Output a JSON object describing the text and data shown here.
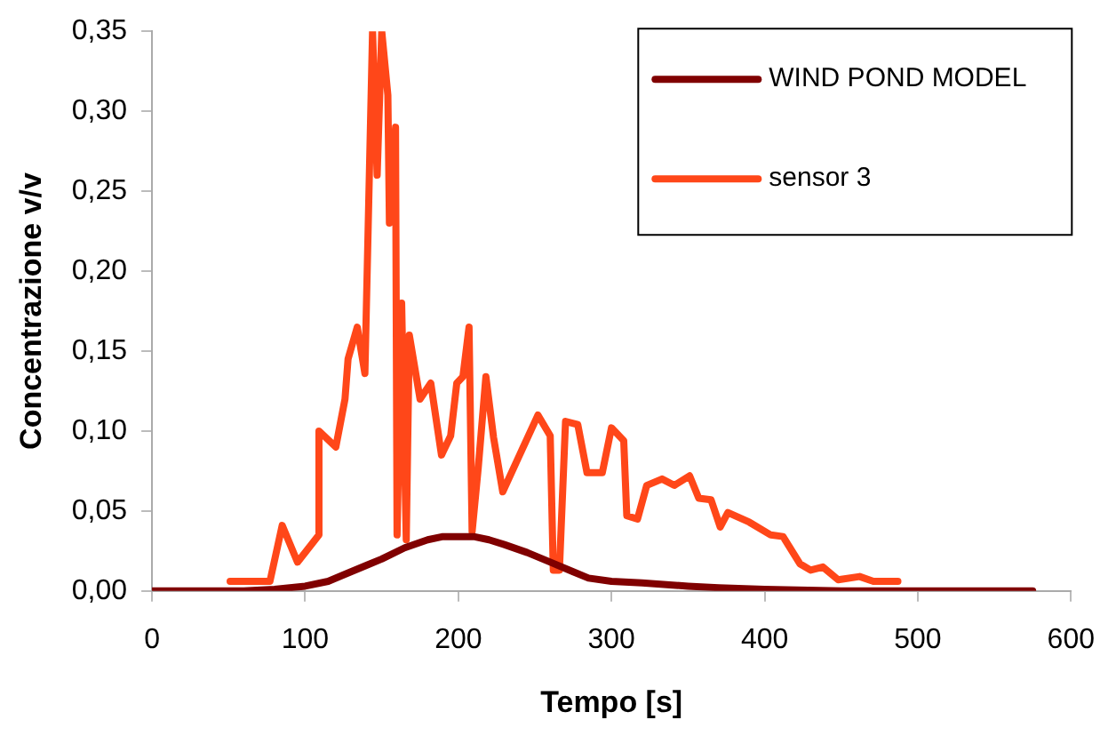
{
  "chart_data": {
    "type": "line",
    "xlabel": "Tempo [s]",
    "ylabel": "Concentrazione v/v",
    "xlim": [
      0,
      600
    ],
    "xticks": [
      0,
      100,
      200,
      300,
      400,
      500,
      600
    ],
    "ylim": [
      0,
      0.35
    ],
    "yticks": [
      {
        "value": 0,
        "label": "0,00"
      },
      {
        "value": 0.05,
        "label": "0,05"
      },
      {
        "value": 0.1,
        "label": "0,10"
      },
      {
        "value": 0.15,
        "label": "0,15"
      },
      {
        "value": 0.2,
        "label": "0,20"
      },
      {
        "value": 0.25,
        "label": "0,25"
      },
      {
        "value": 0.3,
        "label": "0,30"
      },
      {
        "value": 0.35,
        "label": "0,35"
      }
    ],
    "grid": false,
    "legend": "top right",
    "marker": "none",
    "line_style": "solid",
    "series": [
      {
        "name": "WIND POND MODEL",
        "color": "#800000",
        "x": [
          0,
          60,
          80,
          100,
          115,
          125,
          140,
          150,
          165,
          180,
          190,
          210,
          220,
          230,
          245,
          260,
          275,
          285,
          300,
          320,
          350,
          370,
          400,
          450,
          500,
          575
        ],
        "values": [
          0,
          0,
          0.001,
          0.003,
          0.006,
          0.01,
          0.016,
          0.02,
          0.027,
          0.032,
          0.034,
          0.034,
          0.032,
          0.029,
          0.024,
          0.018,
          0.012,
          0.008,
          0.006,
          0.005,
          0.003,
          0.002,
          0.001,
          0,
          0,
          0
        ]
      },
      {
        "name": "sensor 3",
        "color": "#ff4719",
        "x": [
          51,
          77,
          85,
          95,
          109,
          109,
          120,
          126,
          128,
          134,
          139,
          144,
          147,
          150,
          154,
          155,
          159,
          160,
          163,
          166,
          168,
          175,
          182,
          189,
          195,
          199,
          203,
          207,
          209,
          213,
          218,
          223,
          229,
          240,
          252,
          260,
          262,
          266,
          270,
          278,
          284,
          294,
          300,
          308,
          310,
          317,
          323,
          333,
          341,
          351,
          357,
          365,
          371,
          376,
          390,
          404,
          412,
          423,
          430,
          438,
          448,
          462,
          471,
          487
        ],
        "values": [
          0.006,
          0.006,
          0.041,
          0.018,
          0.035,
          0.1,
          0.09,
          0.12,
          0.145,
          0.165,
          0.136,
          0.35,
          0.26,
          0.35,
          0.31,
          0.23,
          0.29,
          0.035,
          0.18,
          0.032,
          0.16,
          0.12,
          0.13,
          0.085,
          0.097,
          0.13,
          0.134,
          0.165,
          0.037,
          0.077,
          0.134,
          0.096,
          0.062,
          0.085,
          0.11,
          0.097,
          0.013,
          0.013,
          0.106,
          0.104,
          0.074,
          0.074,
          0.102,
          0.094,
          0.047,
          0.045,
          0.066,
          0.07,
          0.066,
          0.072,
          0.058,
          0.057,
          0.04,
          0.049,
          0.043,
          0.035,
          0.034,
          0.017,
          0.013,
          0.015,
          0.007,
          0.009,
          0.006,
          0.006
        ]
      }
    ]
  }
}
